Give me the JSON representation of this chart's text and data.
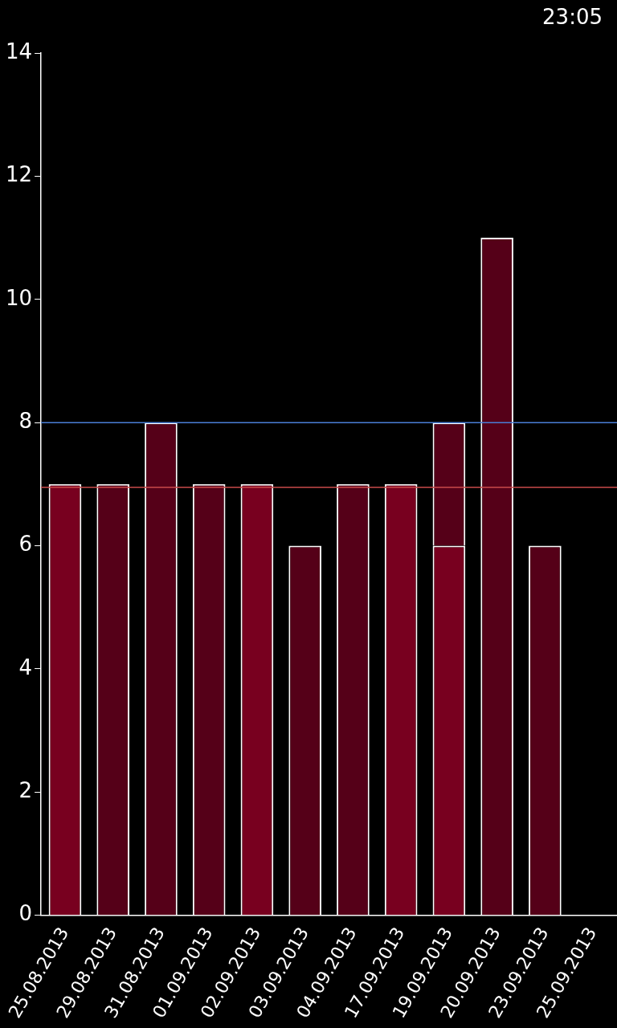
{
  "chart_data": {
    "type": "bar",
    "stacked": true,
    "categories": [
      "25.08.2013",
      "29.08.2013",
      "31.08.2013",
      "01.09.2013",
      "02.09.2013",
      "03.09.2013",
      "04.09.2013",
      "17.09.2013",
      "19.09.2013",
      "20.09.2013",
      "23.09.2013",
      "25.09.2013"
    ],
    "series": [
      {
        "color": "#78001f",
        "values": [
          7,
          null,
          null,
          null,
          7,
          null,
          null,
          7,
          6,
          null,
          null,
          null
        ]
      },
      {
        "color": "#550018",
        "values": [
          null,
          7,
          8,
          7,
          null,
          6,
          7,
          null,
          2,
          11,
          6,
          null
        ]
      }
    ],
    "ylim": [
      0,
      14
    ],
    "yticks": [
      0,
      2,
      4,
      6,
      8,
      10,
      12,
      14
    ],
    "grid": false,
    "legend": false,
    "ref_lines": [
      {
        "axis": "y",
        "value": 8,
        "color": "#4a7fd6"
      },
      {
        "axis": "y",
        "value": 6.95,
        "color": "#c84a4a"
      }
    ],
    "annotations": [
      "23:05"
    ]
  }
}
